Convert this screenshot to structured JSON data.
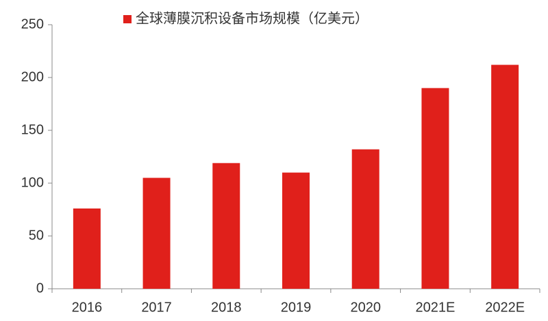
{
  "chart_data": {
    "type": "bar",
    "categories": [
      "2016",
      "2017",
      "2018",
      "2019",
      "2020",
      "2021E",
      "2022E"
    ],
    "series": [
      {
        "name": "全球薄膜沉积设备市场规模（亿美元）",
        "color": "#e0201b",
        "values": [
          76,
          105,
          119,
          110,
          132,
          190,
          212
        ]
      }
    ],
    "ylim": [
      0,
      250
    ],
    "yticks": [
      0,
      50,
      100,
      150,
      200,
      250
    ],
    "grid": false,
    "legend": "top"
  }
}
